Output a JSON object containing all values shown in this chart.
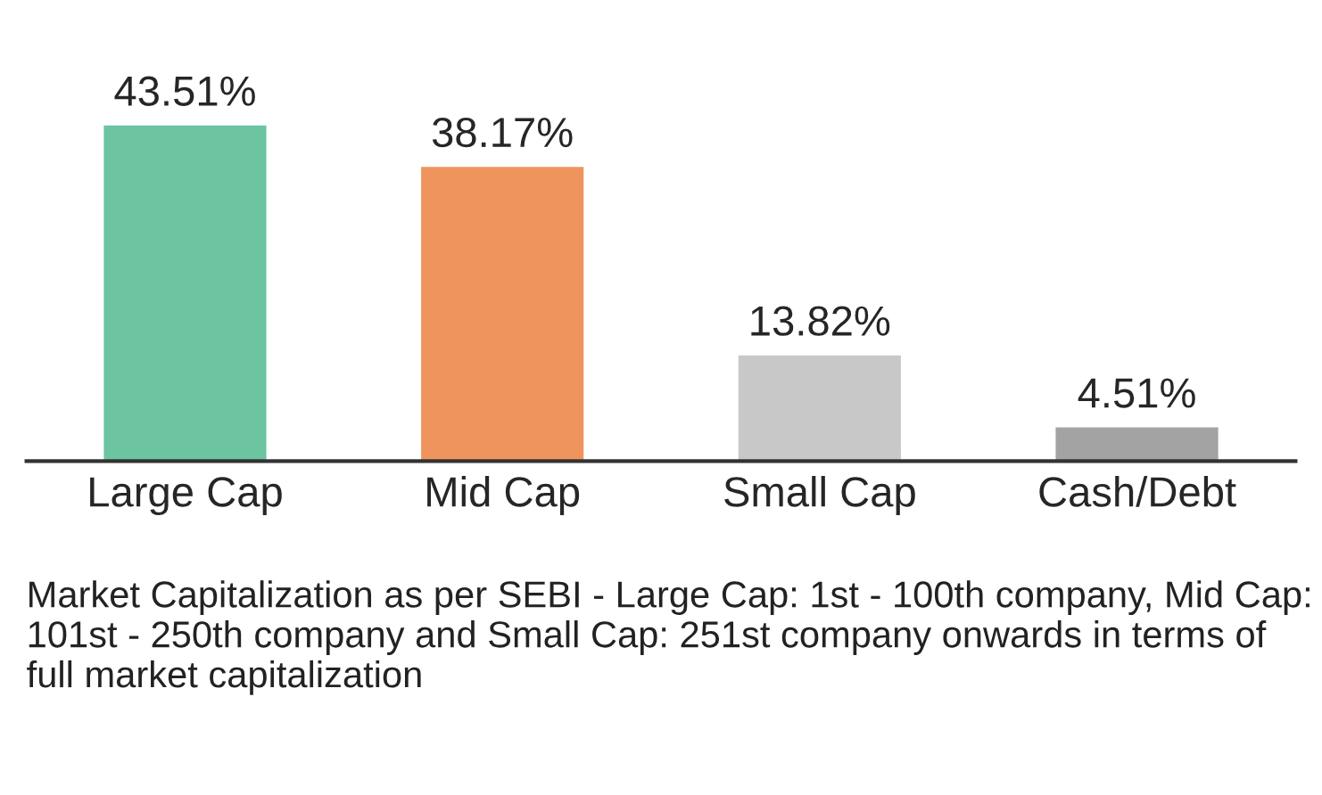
{
  "chart_data": {
    "type": "bar",
    "categories": [
      "Large Cap",
      "Mid Cap",
      "Small Cap",
      "Cash/Debt"
    ],
    "values": [
      43.51,
      38.17,
      13.82,
      4.51
    ],
    "colors": [
      "#6cc4a1",
      "#f0945e",
      "#c8c8c8",
      "#a3a3a3"
    ],
    "value_labels": [
      "43.51%",
      "38.17%",
      "13.82%",
      "4.51%"
    ],
    "annotations": [
      "Market Capitalization as per SEBI - Large Cap: 1st - 100th company, Mid Cap: 101st - 250th company and Small Cap: 251st company onwards in terms of full market capitalization"
    ],
    "grid": false,
    "legend": false
  }
}
